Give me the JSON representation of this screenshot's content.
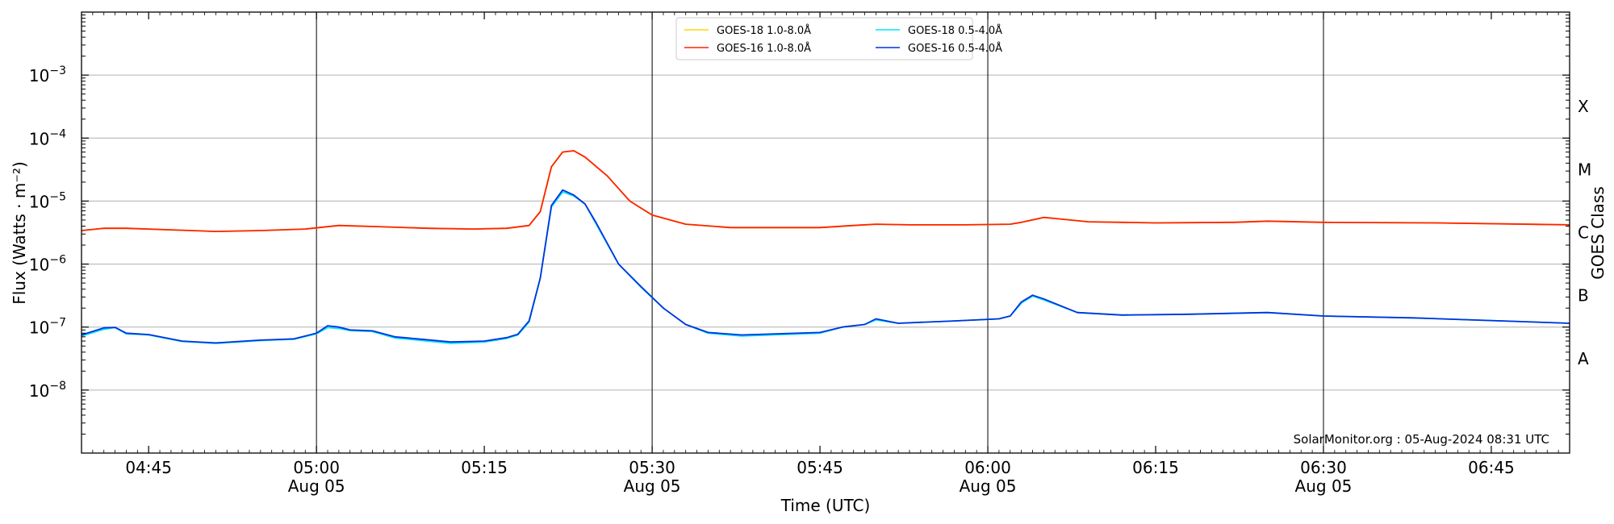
{
  "chart_data": {
    "type": "line",
    "title": "",
    "xlabel": "Time (UTC)",
    "ylabel": "Flux (Watts · m⁻²)",
    "ylabel_right": "GOES Class",
    "y_scale": "log",
    "ylim": [
      1e-09,
      0.01
    ],
    "xlim": [
      "04:39",
      "06:52"
    ],
    "grid": "horizontal at decades, vertical lines at 05:00, 05:30, 06:00, 06:30",
    "legend_position": "top-center",
    "credit": "SolarMonitor.org : 05-Aug-2024 08:31 UTC",
    "y_ticks": [
      {
        "value": 0.001,
        "base": "10",
        "exp": "−3"
      },
      {
        "value": 0.0001,
        "base": "10",
        "exp": "−4"
      },
      {
        "value": 1e-05,
        "base": "10",
        "exp": "−5"
      },
      {
        "value": 1e-06,
        "base": "10",
        "exp": "−6"
      },
      {
        "value": 1e-07,
        "base": "10",
        "exp": "−7"
      },
      {
        "value": 1e-08,
        "base": "10",
        "exp": "−8"
      }
    ],
    "x_ticks": [
      {
        "time": "04:45",
        "label": "04:45",
        "sublabel": ""
      },
      {
        "time": "05:00",
        "label": "05:00",
        "sublabel": "Aug 05"
      },
      {
        "time": "05:15",
        "label": "05:15",
        "sublabel": ""
      },
      {
        "time": "05:30",
        "label": "05:30",
        "sublabel": "Aug 05"
      },
      {
        "time": "05:45",
        "label": "05:45",
        "sublabel": ""
      },
      {
        "time": "06:00",
        "label": "06:00",
        "sublabel": "Aug 05"
      },
      {
        "time": "06:15",
        "label": "06:15",
        "sublabel": ""
      },
      {
        "time": "06:30",
        "label": "06:30",
        "sublabel": "Aug 05"
      },
      {
        "time": "06:45",
        "label": "06:45",
        "sublabel": ""
      }
    ],
    "goes_classes": [
      {
        "label": "X",
        "value": 0.000316
      },
      {
        "label": "M",
        "value": 3.16e-05
      },
      {
        "label": "C",
        "value": 3.16e-06
      },
      {
        "label": "B",
        "value": 3.16e-07
      },
      {
        "label": "A",
        "value": 3.16e-08
      }
    ],
    "series": [
      {
        "name": "GOES-18 1.0-8.0Å",
        "color": "#ffd700",
        "x": [
          "04:39",
          "04:41",
          "04:43",
          "04:47",
          "04:51",
          "04:55",
          "04:59",
          "05:02",
          "05:06",
          "05:10",
          "05:14",
          "05:17",
          "05:19",
          "05:20",
          "05:21",
          "05:22",
          "05:23",
          "05:24",
          "05:26",
          "05:28",
          "05:30",
          "05:33",
          "05:37",
          "05:45",
          "05:48",
          "05:50",
          "05:53",
          "05:58",
          "06:02",
          "06:03",
          "06:05",
          "06:06",
          "06:09",
          "06:15",
          "06:22",
          "06:25",
          "06:30",
          "06:40",
          "06:52"
        ],
        "y": [
          3.4e-06,
          3.7e-06,
          3.7e-06,
          3.5e-06,
          3.3e-06,
          3.4e-06,
          3.6e-06,
          4.1e-06,
          3.9e-06,
          3.7e-06,
          3.6e-06,
          3.7e-06,
          4.1e-06,
          6.8e-06,
          3.5e-05,
          6e-05,
          6.3e-05,
          5e-05,
          2.5e-05,
          1e-05,
          6e-06,
          4.3e-06,
          3.8e-06,
          3.8e-06,
          4.1e-06,
          4.3e-06,
          4.2e-06,
          4.2e-06,
          4.3e-06,
          4.6e-06,
          5.5e-06,
          5.3e-06,
          4.7e-06,
          4.5e-06,
          4.6e-06,
          4.8e-06,
          4.6e-06,
          4.5e-06,
          4.2e-06
        ]
      },
      {
        "name": "GOES-16 1.0-8.0Å",
        "color": "#ff2200",
        "x": [
          "04:39",
          "04:41",
          "04:43",
          "04:47",
          "04:51",
          "04:55",
          "04:59",
          "05:02",
          "05:06",
          "05:10",
          "05:14",
          "05:17",
          "05:19",
          "05:20",
          "05:21",
          "05:22",
          "05:23",
          "05:24",
          "05:26",
          "05:28",
          "05:30",
          "05:33",
          "05:37",
          "05:45",
          "05:48",
          "05:50",
          "05:53",
          "05:58",
          "06:02",
          "06:03",
          "06:05",
          "06:06",
          "06:09",
          "06:15",
          "06:22",
          "06:25",
          "06:30",
          "06:40",
          "06:52"
        ],
        "y": [
          3.4e-06,
          3.7e-06,
          3.7e-06,
          3.5e-06,
          3.3e-06,
          3.4e-06,
          3.6e-06,
          4.1e-06,
          3.9e-06,
          3.7e-06,
          3.6e-06,
          3.7e-06,
          4.1e-06,
          6.8e-06,
          3.5e-05,
          6e-05,
          6.3e-05,
          5e-05,
          2.5e-05,
          1e-05,
          6e-06,
          4.3e-06,
          3.8e-06,
          3.8e-06,
          4.1e-06,
          4.3e-06,
          4.2e-06,
          4.2e-06,
          4.3e-06,
          4.6e-06,
          5.5e-06,
          5.3e-06,
          4.7e-06,
          4.5e-06,
          4.6e-06,
          4.8e-06,
          4.6e-06,
          4.5e-06,
          4.2e-06
        ]
      },
      {
        "name": "GOES-18 0.5-4.0Å",
        "color": "#00e5ff",
        "x": [
          "04:39",
          "04:41",
          "04:42",
          "04:43",
          "04:45",
          "04:48",
          "04:51",
          "04:53",
          "04:55",
          "04:57",
          "04:58",
          "05:00",
          "05:01",
          "05:02",
          "05:03",
          "05:05",
          "05:07",
          "05:09",
          "05:12",
          "05:15",
          "05:17",
          "05:18",
          "05:19",
          "05:20",
          "05:21",
          "05:22",
          "05:23",
          "05:24",
          "05:25",
          "05:27",
          "05:29",
          "05:31",
          "05:33",
          "05:35",
          "05:38",
          "05:45",
          "05:47",
          "05:49",
          "05:50",
          "05:52",
          "05:57",
          "06:01",
          "06:02",
          "06:03",
          "06:04",
          "06:05",
          "06:08",
          "06:12",
          "06:18",
          "06:25",
          "06:30",
          "06:38",
          "06:52"
        ],
        "y": [
          7.2e-08,
          9.2e-08,
          9.8e-08,
          7.8e-08,
          7.5e-08,
          5.9e-08,
          5.5e-08,
          5.8e-08,
          6.1e-08,
          6.3e-08,
          6.4e-08,
          7.8e-08,
          9.8e-08,
          9.5e-08,
          8.8e-08,
          8.5e-08,
          6.7e-08,
          6.2e-08,
          5.5e-08,
          5.8e-08,
          6.6e-08,
          7.5e-08,
          1.2e-07,
          6e-07,
          8e-06,
          1.4e-05,
          1.2e-05,
          9e-06,
          4.3e-06,
          1e-06,
          4.3e-07,
          2e-07,
          1.1e-07,
          8e-08,
          7.2e-08,
          8e-08,
          1e-07,
          1.1e-07,
          1.3e-07,
          1.15e-07,
          1.25e-07,
          1.35e-07,
          1.5e-07,
          2.4e-07,
          3.1e-07,
          2.7e-07,
          1.7e-07,
          1.55e-07,
          1.6e-07,
          1.7e-07,
          1.5e-07,
          1.4e-07,
          1.15e-07
        ]
      },
      {
        "name": "GOES-16 0.5-4.0Å",
        "color": "#0033dd",
        "x": [
          "04:39",
          "04:41",
          "04:42",
          "04:43",
          "04:45",
          "04:48",
          "04:51",
          "04:53",
          "04:55",
          "04:57",
          "04:58",
          "05:00",
          "05:01",
          "05:02",
          "05:03",
          "05:05",
          "05:07",
          "05:09",
          "05:12",
          "05:15",
          "05:17",
          "05:18",
          "05:19",
          "05:20",
          "05:21",
          "05:22",
          "05:23",
          "05:24",
          "05:25",
          "05:27",
          "05:29",
          "05:31",
          "05:33",
          "05:35",
          "05:38",
          "05:45",
          "05:47",
          "05:49",
          "05:50",
          "05:52",
          "05:57",
          "06:01",
          "06:02",
          "06:03",
          "06:04",
          "06:05",
          "06:08",
          "06:12",
          "06:18",
          "06:25",
          "06:30",
          "06:38",
          "06:52"
        ],
        "y": [
          7.5e-08,
          9.7e-08,
          9.9e-08,
          8e-08,
          7.6e-08,
          6e-08,
          5.6e-08,
          5.9e-08,
          6.2e-08,
          6.4e-08,
          6.5e-08,
          8e-08,
          1.05e-07,
          1e-07,
          9e-08,
          8.7e-08,
          7e-08,
          6.5e-08,
          5.8e-08,
          6e-08,
          6.8e-08,
          7.7e-08,
          1.25e-07,
          6e-07,
          8.5e-06,
          1.5e-05,
          1.25e-05,
          9e-06,
          4.5e-06,
          1e-06,
          4.4e-07,
          2e-07,
          1.1e-07,
          8.2e-08,
          7.5e-08,
          8.2e-08,
          1e-07,
          1.1e-07,
          1.35e-07,
          1.15e-07,
          1.25e-07,
          1.35e-07,
          1.5e-07,
          2.5e-07,
          3.2e-07,
          2.8e-07,
          1.7e-07,
          1.55e-07,
          1.6e-07,
          1.7e-07,
          1.5e-07,
          1.4e-07,
          1.15e-07
        ]
      }
    ]
  }
}
